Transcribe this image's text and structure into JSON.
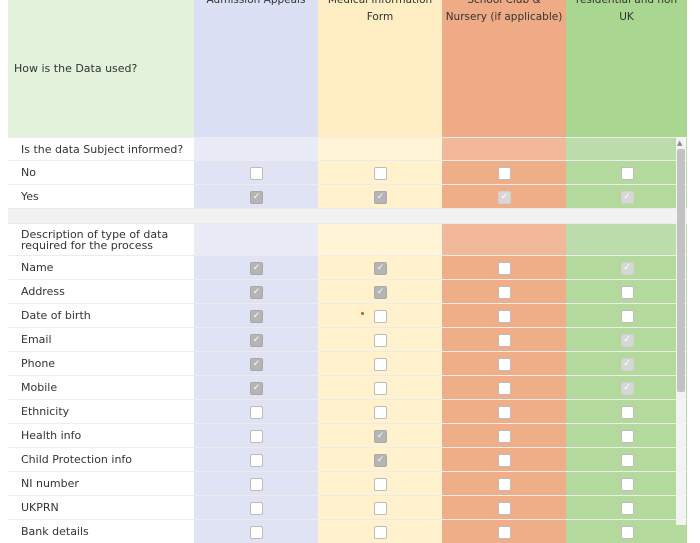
{
  "header": {
    "row_label": "How is the Data used?",
    "columns": [
      "Admission Appeals",
      "Medical Information\nForm",
      "School Club &\nNursery (if applicable)",
      "residential and non\nUK"
    ]
  },
  "section1": {
    "question": "Is the data Subject informed?",
    "rows": [
      {
        "label": "No",
        "checks": [
          false,
          false,
          false,
          false
        ]
      },
      {
        "label": "Yes",
        "checks": [
          true,
          true,
          true,
          true
        ]
      }
    ]
  },
  "section2": {
    "question": "Description of type of data required for the process",
    "rows": [
      {
        "label": "Name",
        "checks": [
          true,
          true,
          false,
          true
        ]
      },
      {
        "label": "Address",
        "checks": [
          true,
          true,
          false,
          false
        ]
      },
      {
        "label": "Date of birth",
        "checks": [
          true,
          false,
          false,
          false
        ]
      },
      {
        "label": "Email",
        "checks": [
          true,
          false,
          false,
          true
        ]
      },
      {
        "label": "Phone",
        "checks": [
          true,
          false,
          false,
          true
        ]
      },
      {
        "label": "Mobile",
        "checks": [
          true,
          false,
          false,
          true
        ]
      },
      {
        "label": "Ethnicity",
        "checks": [
          false,
          false,
          false,
          false
        ]
      },
      {
        "label": "Health info",
        "checks": [
          false,
          true,
          false,
          false
        ]
      },
      {
        "label": "Child Protection info",
        "checks": [
          false,
          true,
          false,
          false
        ]
      },
      {
        "label": "NI number",
        "checks": [
          false,
          false,
          false,
          false
        ]
      },
      {
        "label": "UKPRN",
        "checks": [
          false,
          false,
          false,
          false
        ]
      },
      {
        "label": "Bank details",
        "checks": [
          false,
          false,
          false,
          false
        ]
      }
    ]
  },
  "colors": {
    "blue": "#dfe3f3",
    "yellow": "#fff2cc",
    "orange": "#efae88",
    "green": "#b4d99c",
    "header_label": "#e3f2db"
  }
}
